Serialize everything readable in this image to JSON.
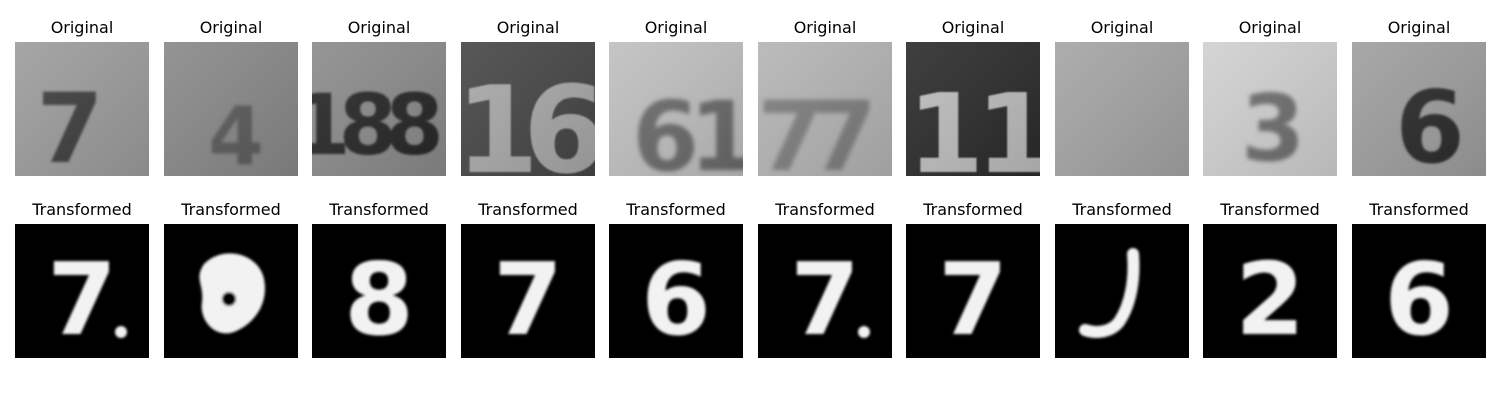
{
  "figure": {
    "rows": [
      {
        "name": "original",
        "panels": [
          {
            "title": "Original",
            "content": "7",
            "image": "house-number-photo"
          },
          {
            "title": "Original",
            "content": "4",
            "image": "house-number-photo"
          },
          {
            "title": "Original",
            "content": "188",
            "image": "house-number-photo"
          },
          {
            "title": "Original",
            "content": "16",
            "image": "house-number-photo"
          },
          {
            "title": "Original",
            "content": "61",
            "image": "house-number-photo"
          },
          {
            "title": "Original",
            "content": "77",
            "image": "house-number-photo"
          },
          {
            "title": "Original",
            "content": "11",
            "image": "house-number-photo"
          },
          {
            "title": "Original",
            "content": "",
            "image": "house-number-photo"
          },
          {
            "title": "Original",
            "content": "3",
            "image": "house-number-photo"
          },
          {
            "title": "Original",
            "content": "6",
            "image": "house-number-photo"
          }
        ]
      },
      {
        "name": "transformed",
        "panels": [
          {
            "title": "Transformed",
            "content": "7",
            "image": "handwritten-digit"
          },
          {
            "title": "Transformed",
            "content": "",
            "image": "handwritten-digit"
          },
          {
            "title": "Transformed",
            "content": "8",
            "image": "handwritten-digit"
          },
          {
            "title": "Transformed",
            "content": "7",
            "image": "handwritten-digit"
          },
          {
            "title": "Transformed",
            "content": "6",
            "image": "handwritten-digit"
          },
          {
            "title": "Transformed",
            "content": "7",
            "image": "handwritten-digit"
          },
          {
            "title": "Transformed",
            "content": "7",
            "image": "handwritten-digit"
          },
          {
            "title": "Transformed",
            "content": "",
            "image": "handwritten-digit"
          },
          {
            "title": "Transformed",
            "content": "2",
            "image": "handwritten-digit"
          },
          {
            "title": "Transformed",
            "content": "6",
            "image": "handwritten-digit"
          }
        ]
      }
    ]
  }
}
